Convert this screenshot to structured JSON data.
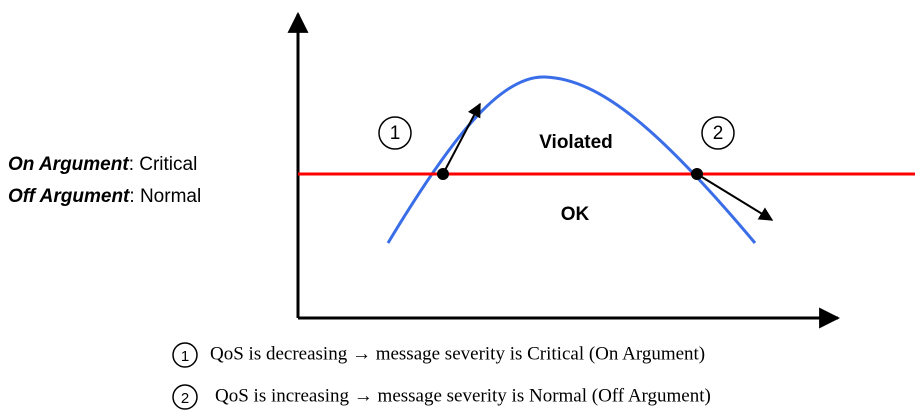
{
  "left_labels": [
    {
      "term": "On Argument",
      "value": ": Critical"
    },
    {
      "term": "Off Argument",
      "value": ": Normal"
    }
  ],
  "regions": {
    "above": "Violated",
    "below": "OK"
  },
  "markers": [
    "1",
    "2"
  ],
  "legend": [
    {
      "marker": "1",
      "text": "QoS is decreasing → message severity is Critical (On Argument)"
    },
    {
      "marker": "2",
      "text": "QoS is increasing → message severity is Normal (Off Argument)"
    }
  ]
}
